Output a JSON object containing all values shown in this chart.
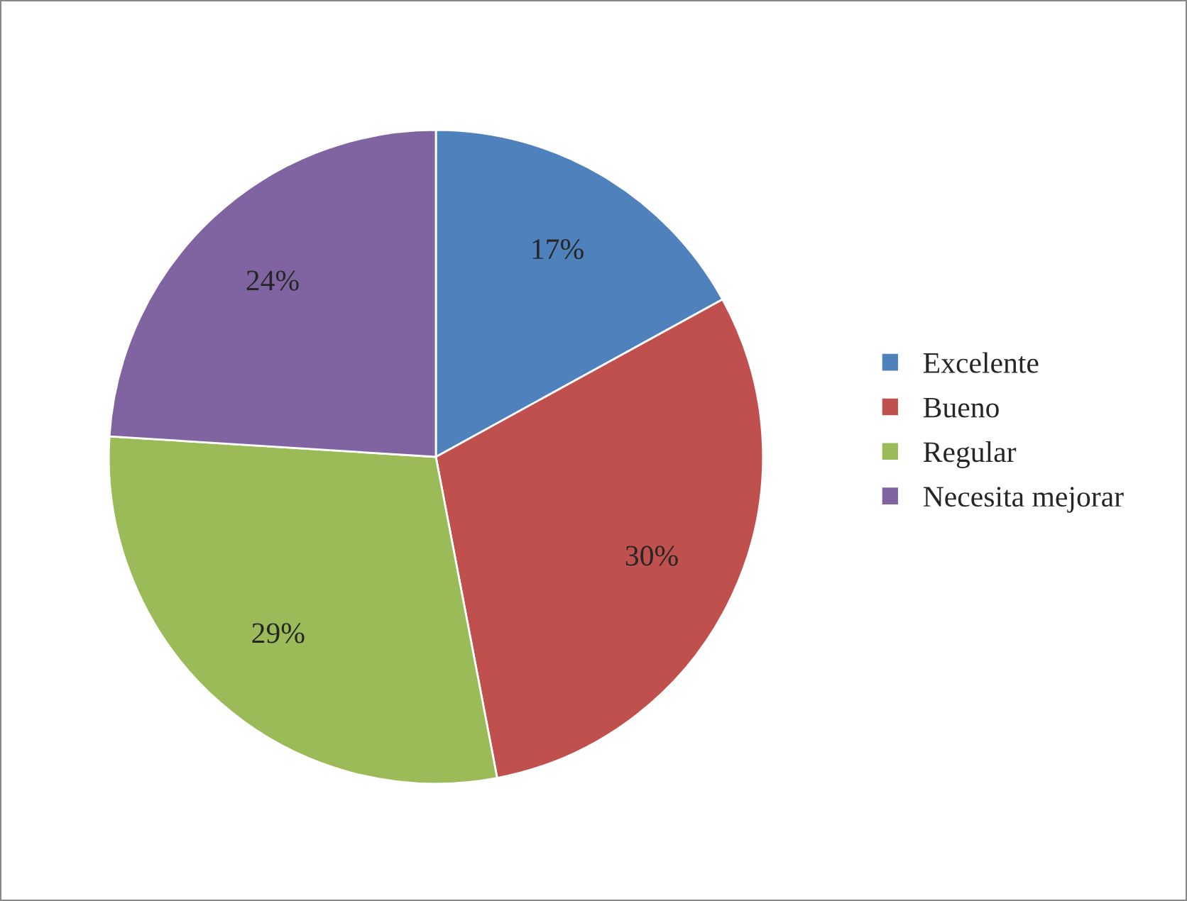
{
  "chart_data": {
    "type": "pie",
    "categories": [
      "Excelente",
      "Bueno",
      "Regular",
      "Necesita mejorar"
    ],
    "values": [
      17,
      30,
      29,
      24
    ],
    "colors": [
      "#4f81bd",
      "#c0504d",
      "#9bbb59",
      "#8064a2"
    ],
    "value_labels": [
      "17%",
      "30%",
      "29%",
      "24%"
    ],
    "legend": "right"
  }
}
